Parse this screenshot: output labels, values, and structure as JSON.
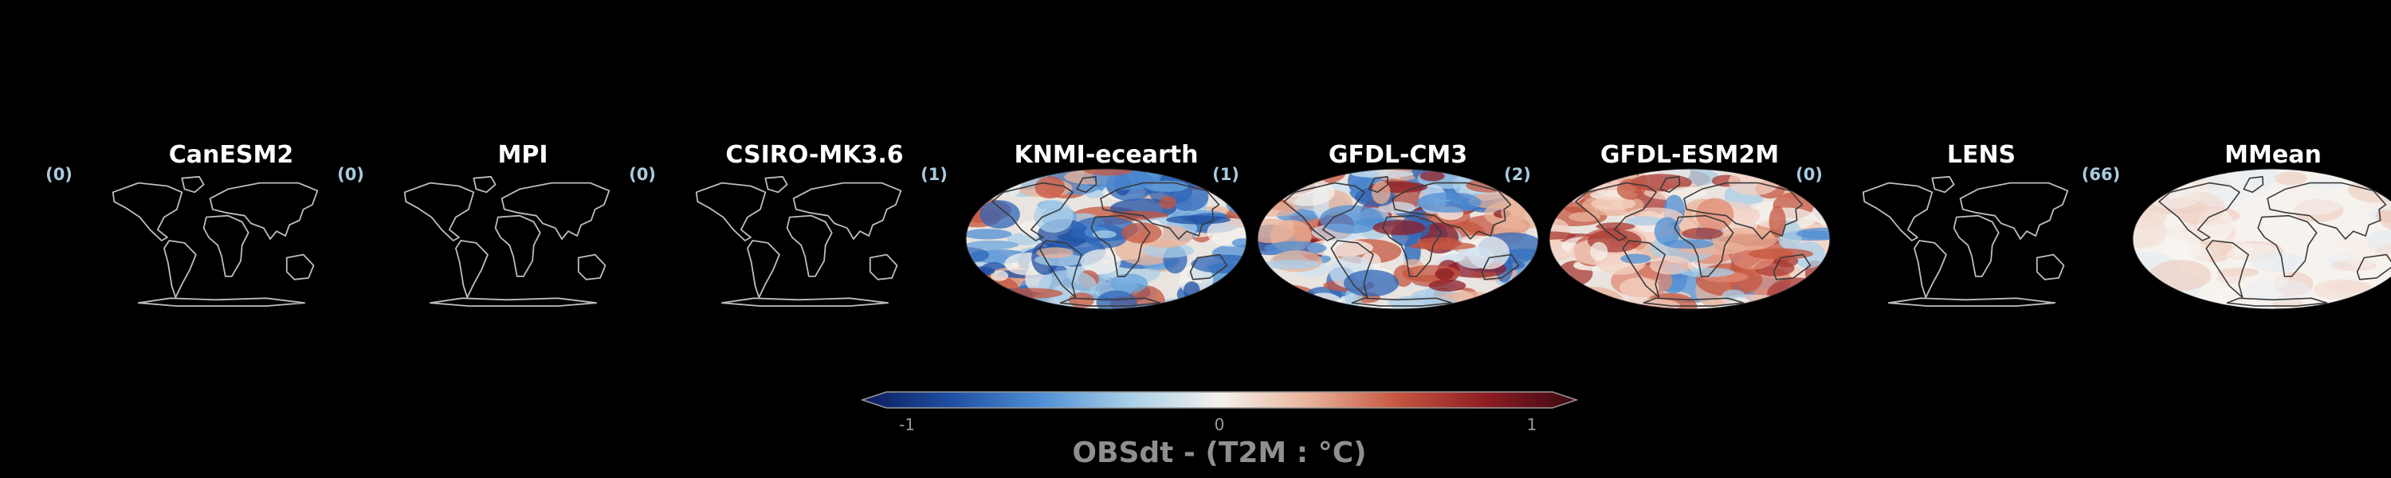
{
  "panels": [
    {
      "name": "CanESM2",
      "count": "(0)",
      "filled": false
    },
    {
      "name": "MPI",
      "count": "(0)",
      "filled": false
    },
    {
      "name": "CSIRO-MK3.6",
      "count": "(0)",
      "filled": false
    },
    {
      "name": "KNMI-ecearth",
      "count": "(1)",
      "filled": true,
      "style": "blue"
    },
    {
      "name": "GFDL-CM3",
      "count": "(1)",
      "filled": true,
      "style": "mixed"
    },
    {
      "name": "GFDL-ESM2M",
      "count": "(2)",
      "filled": true,
      "style": "red"
    },
    {
      "name": "LENS",
      "count": "(0)",
      "filled": false
    },
    {
      "name": "MMean",
      "count": "(66)",
      "filled": true,
      "style": "pale"
    }
  ],
  "colorbar": {
    "label": "OBSdt - (T2M : °C)",
    "ticks": [
      "-1",
      "0",
      "1"
    ],
    "range": [
      -1,
      1
    ],
    "colors": [
      "#0b1d5a",
      "#1f4fa3",
      "#4f8fd4",
      "#a9cfe8",
      "#f4f1ec",
      "#eab39a",
      "#c5553f",
      "#8d1c24",
      "#3a0810"
    ]
  },
  "colors": {
    "background": "#000000",
    "coastline": "#bdbdbd",
    "count_text": "#a9cbe0",
    "title_text": "#ffffff",
    "colorbar_label": "#8f8f8f"
  }
}
